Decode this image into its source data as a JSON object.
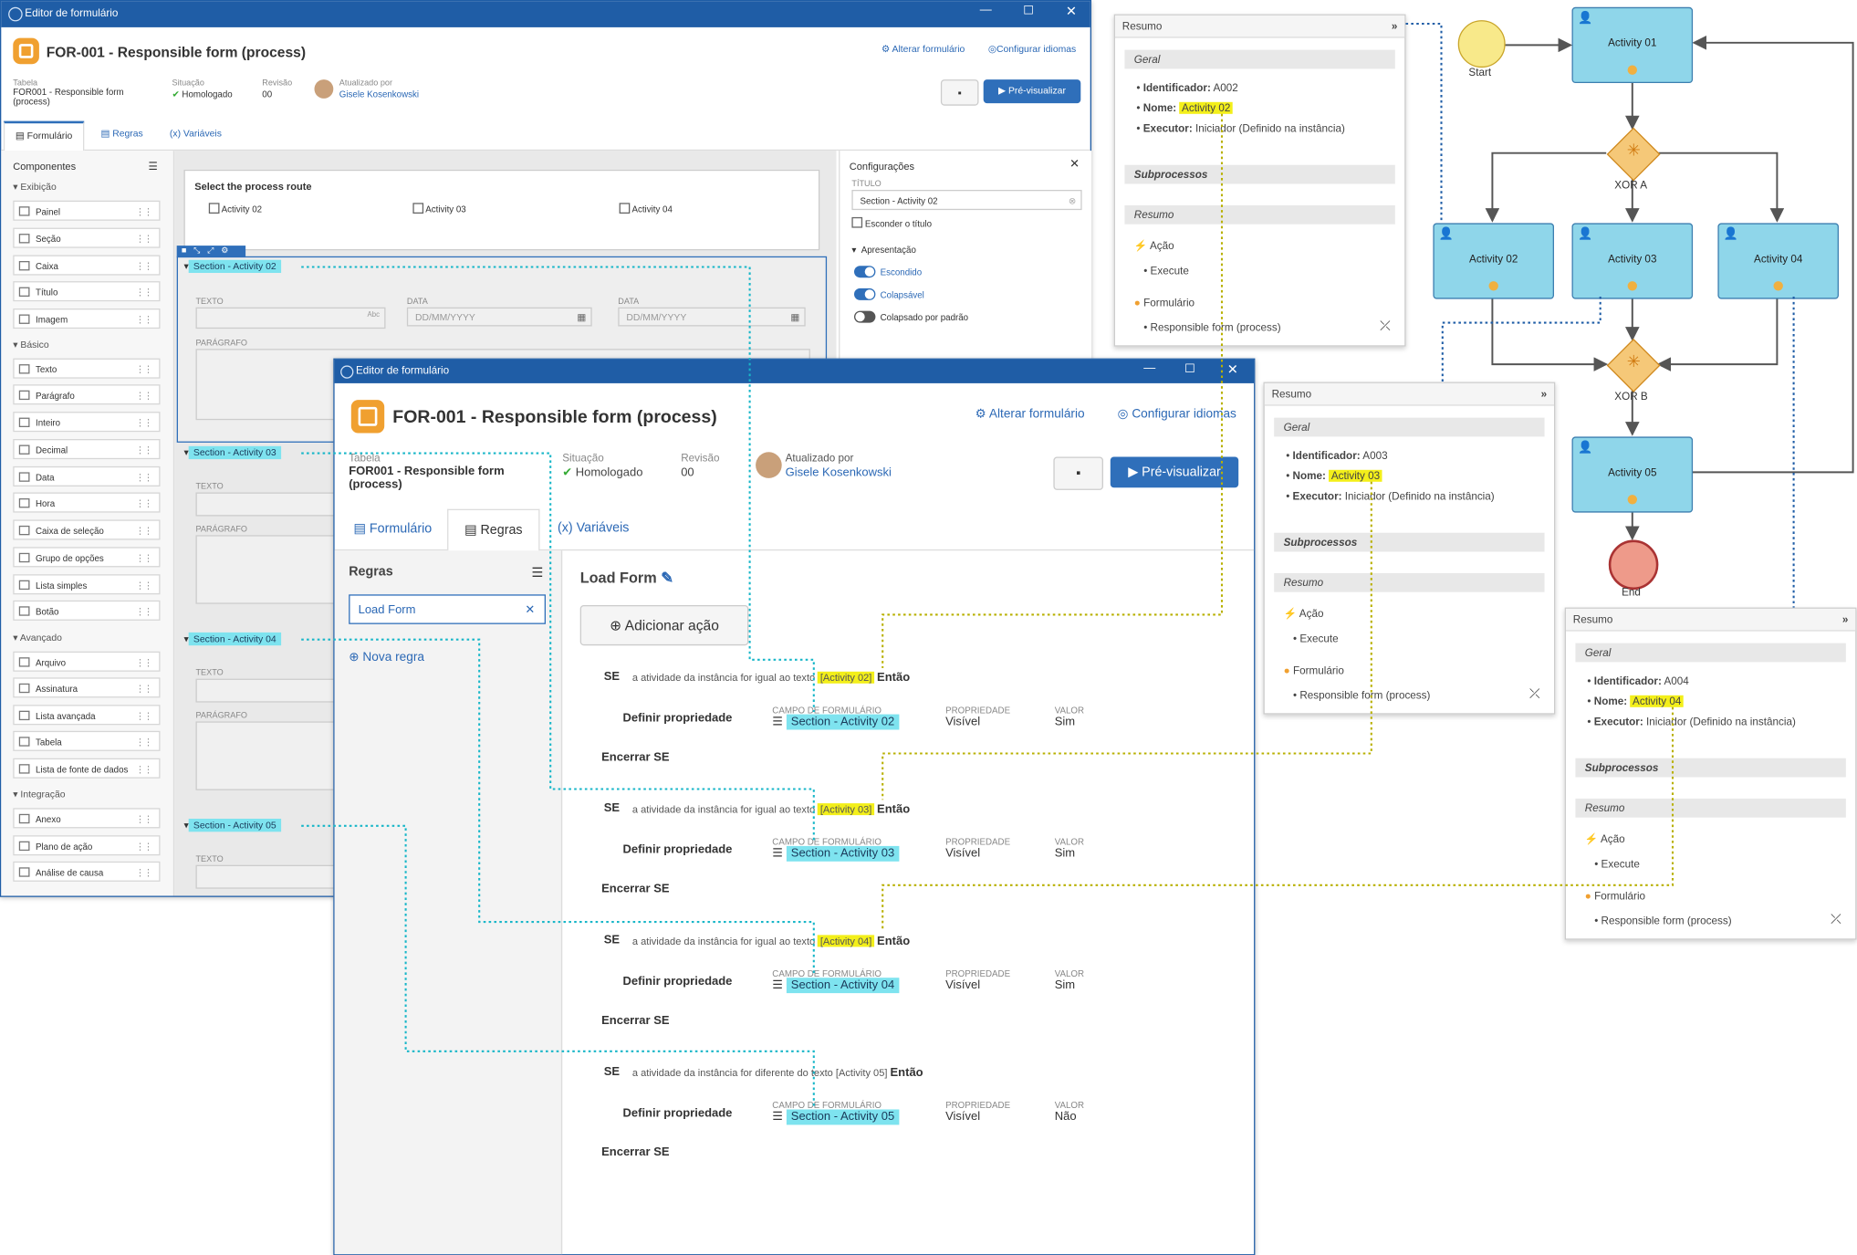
{
  "back_window": {
    "title": "Editor de formulário",
    "form_title": "FOR-001 - Responsible form (process)",
    "links": {
      "alterar": "Alterar formulário",
      "config": "Configurar idiomas"
    },
    "meta": {
      "tabela_label": "Tabela",
      "tabela_value": "FOR001 - Responsible form (process)",
      "situacao_label": "Situação",
      "situacao_value": "Homologado",
      "revisao_label": "Revisão",
      "revisao_value": "00",
      "atualizado_label": "Atualizado por",
      "atualizado_value": "Gisele Kosenkowski"
    },
    "preview_label": "Pré-visualizar",
    "tabs": [
      "Formulário",
      "Regras",
      "Variáveis"
    ],
    "components_title": "Componentes",
    "groups": {
      "exibicao": "Exibição",
      "basico": "Básico",
      "avancado": "Avançado",
      "integracao": "Integração"
    },
    "components": {
      "exibicao": [
        "Painel",
        "Seção",
        "Caixa",
        "Título",
        "Imagem"
      ],
      "basico": [
        "Texto",
        "Parágrafo",
        "Inteiro",
        "Decimal",
        "Data",
        "Hora",
        "Caixa de seleção",
        "Grupo de opções",
        "Lista simples",
        "Botão"
      ],
      "avancado": [
        "Arquivo",
        "Assinatura",
        "Lista avançada",
        "Tabela",
        "Lista de fonte de dados"
      ],
      "integracao": [
        "Anexo",
        "Plano de ação",
        "Análise de causa"
      ]
    },
    "route_title": "Select the process route",
    "route_options": [
      "Activity 02",
      "Activity 03",
      "Activity 04"
    ],
    "sections": [
      "Section - Activity 02",
      "Section - Activity 03",
      "Section - Activity 04",
      "Section - Activity 05"
    ],
    "field_labels": {
      "texto": "TEXTO",
      "data": "DATA",
      "paragrafo": "PARÁGRAFO",
      "date_placeholder": "DD/MM/YYYY"
    },
    "config": {
      "title": "Configurações",
      "titulo_label": "TÍTULO",
      "titulo_value": "Section - Activity 02",
      "esconder": "Esconder o título",
      "apresentacao": "Apresentação",
      "escondido": "Escondido",
      "colapsavel": "Colapsável",
      "colapsado": "Colapsado por padrão"
    }
  },
  "front_window": {
    "title": "Editor de formulário",
    "form_title": "FOR-001 - Responsible form (process)",
    "links": {
      "alterar": "Alterar formulário",
      "config": "Configurar idiomas"
    },
    "meta": {
      "tabela_label": "Tabela",
      "tabela_value": "FOR001 - Responsible form (process)",
      "situacao_label": "Situação",
      "situacao_value": "Homologado",
      "revisao_label": "Revisão",
      "revisao_value": "00",
      "atualizado_label": "Atualizado por",
      "atualizado_value": "Gisele Kosenkowski"
    },
    "preview_label": "Pré-visualizar",
    "tabs": [
      "Formulário",
      "Regras",
      "Variáveis"
    ],
    "rules_title": "Regras",
    "rule_item": "Load Form",
    "new_rule": "Nova regra",
    "event_title": "Load Form",
    "add_action": "Adicionar ação",
    "rules": [
      {
        "se": "SE",
        "cond": "a atividade da instância for igual ao texto",
        "value": "[Activity 02]",
        "entao": "Então",
        "define": "Definir propriedade",
        "campo_label": "CAMPO DE FORMULÁRIO",
        "campo": "Section - Activity 02",
        "prop_label": "PROPRIEDADE",
        "prop": "Visível",
        "valor_label": "VALOR",
        "valor": "Sim",
        "end": "Encerrar SE"
      },
      {
        "se": "SE",
        "cond": "a atividade da instância for igual ao texto",
        "value": "[Activity 03]",
        "entao": "Então",
        "define": "Definir propriedade",
        "campo_label": "CAMPO DE FORMULÁRIO",
        "campo": "Section - Activity 03",
        "prop_label": "PROPRIEDADE",
        "prop": "Visível",
        "valor_label": "VALOR",
        "valor": "Sim",
        "end": "Encerrar SE"
      },
      {
        "se": "SE",
        "cond": "a atividade da instância for igual ao texto",
        "value": "[Activity 04]",
        "entao": "Então",
        "define": "Definir propriedade",
        "campo_label": "CAMPO DE FORMULÁRIO",
        "campo": "Section - Activity 04",
        "prop_label": "PROPRIEDADE",
        "prop": "Visível",
        "valor_label": "VALOR",
        "valor": "Sim",
        "end": "Encerrar SE"
      },
      {
        "se": "SE",
        "cond": "a atividade da instância for diferente do texto",
        "value": "[Activity 05]",
        "entao": "Então",
        "define": "Definir propriedade",
        "campo_label": "CAMPO DE FORMULÁRIO",
        "campo": "Section - Activity 05",
        "prop_label": "PROPRIEDADE",
        "prop": "Visível",
        "valor_label": "VALOR",
        "valor": "Não",
        "end": "Encerrar SE"
      }
    ]
  },
  "summaries": [
    {
      "title": "Resumo",
      "geral": "Geral",
      "id_label": "Identificador:",
      "id": "A002",
      "nome_label": "Nome:",
      "nome": "Activity 02",
      "exec_label": "Executor:",
      "exec": "Iniciador (Definido na instância)",
      "sub": "Subprocessos",
      "resumo": "Resumo",
      "acao": "Ação",
      "execute": "Execute",
      "formulario": "Formulário",
      "form": "Responsible form (process)"
    },
    {
      "title": "Resumo",
      "geral": "Geral",
      "id_label": "Identificador:",
      "id": "A003",
      "nome_label": "Nome:",
      "nome": "Activity 03",
      "exec_label": "Executor:",
      "exec": "Iniciador (Definido na instância)",
      "sub": "Subprocessos",
      "resumo": "Resumo",
      "acao": "Ação",
      "execute": "Execute",
      "formulario": "Formulário",
      "form": "Responsible form (process)"
    },
    {
      "title": "Resumo",
      "geral": "Geral",
      "id_label": "Identificador:",
      "id": "A004",
      "nome_label": "Nome:",
      "nome": "Activity 04",
      "exec_label": "Executor:",
      "exec": "Iniciador (Definido na instância)",
      "sub": "Subprocessos",
      "resumo": "Resumo",
      "acao": "Ação",
      "execute": "Execute",
      "formulario": "Formulário",
      "form": "Responsible form (process)"
    }
  ],
  "diagram": {
    "start": "Start",
    "end": "End",
    "xor_a": "XOR A",
    "xor_b": "XOR B",
    "activities": [
      "Activity 01",
      "Activity 02",
      "Activity 03",
      "Activity 04",
      "Activity 05"
    ]
  },
  "colors": {
    "accent": "#1f5da6",
    "highlight_cyan": "#7ee3ef",
    "highlight_yellow": "#f3ef1a",
    "activity_fill": "#8fd6ea"
  }
}
